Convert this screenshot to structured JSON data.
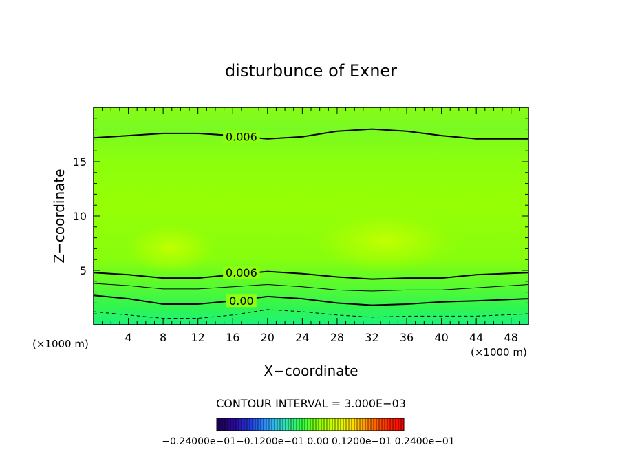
{
  "chart_data": {
    "type": "contour",
    "title": "disturbunce of Exner",
    "xlabel": "X−coordinate",
    "ylabel": "Z−coordinate",
    "x_unit_left": "(×1000 m)",
    "x_unit_right": "(×1000 m)",
    "xlim": [
      0,
      50
    ],
    "ylim": [
      0,
      20
    ],
    "x_ticks": [
      4,
      8,
      12,
      16,
      20,
      24,
      28,
      32,
      36,
      40,
      44,
      48
    ],
    "y_ticks": [
      5,
      10,
      15
    ],
    "contour_labels": [
      {
        "text": "0.006",
        "x": 17,
        "z": 17.3
      },
      {
        "text": "0.006",
        "x": 17,
        "z": 4.8
      },
      {
        "text": "0.00",
        "x": 17,
        "z": 2.2
      }
    ],
    "contour_lines": [
      {
        "level": 0.006,
        "style": "solid-bold",
        "points": [
          [
            0,
            17.2
          ],
          [
            4,
            17.4
          ],
          [
            8,
            17.6
          ],
          [
            12,
            17.6
          ],
          [
            16,
            17.4
          ],
          [
            20,
            17.1
          ],
          [
            24,
            17.3
          ],
          [
            28,
            17.8
          ],
          [
            32,
            18.0
          ],
          [
            36,
            17.8
          ],
          [
            40,
            17.4
          ],
          [
            44,
            17.1
          ],
          [
            50,
            17.1
          ]
        ]
      },
      {
        "level": 0.006,
        "style": "solid-bold",
        "points": [
          [
            0,
            4.8
          ],
          [
            4,
            4.6
          ],
          [
            8,
            4.3
          ],
          [
            12,
            4.3
          ],
          [
            16,
            4.6
          ],
          [
            20,
            4.9
          ],
          [
            24,
            4.7
          ],
          [
            28,
            4.4
          ],
          [
            32,
            4.2
          ],
          [
            36,
            4.3
          ],
          [
            40,
            4.3
          ],
          [
            44,
            4.6
          ],
          [
            50,
            4.8
          ]
        ]
      },
      {
        "level": 0.003,
        "style": "solid-thin",
        "points": [
          [
            0,
            3.8
          ],
          [
            4,
            3.6
          ],
          [
            8,
            3.3
          ],
          [
            12,
            3.3
          ],
          [
            16,
            3.5
          ],
          [
            20,
            3.7
          ],
          [
            24,
            3.5
          ],
          [
            28,
            3.2
          ],
          [
            32,
            3.1
          ],
          [
            36,
            3.2
          ],
          [
            40,
            3.2
          ],
          [
            44,
            3.4
          ],
          [
            50,
            3.7
          ]
        ]
      },
      {
        "level": 0.0,
        "style": "solid-bold",
        "points": [
          [
            0,
            2.7
          ],
          [
            4,
            2.4
          ],
          [
            8,
            1.9
          ],
          [
            12,
            1.9
          ],
          [
            16,
            2.2
          ],
          [
            20,
            2.6
          ],
          [
            24,
            2.4
          ],
          [
            28,
            2.0
          ],
          [
            32,
            1.8
          ],
          [
            36,
            1.9
          ],
          [
            40,
            2.1
          ],
          [
            44,
            2.2
          ],
          [
            50,
            2.4
          ]
        ]
      },
      {
        "level": -0.003,
        "style": "dashed",
        "points": [
          [
            0,
            1.2
          ],
          [
            4,
            0.9
          ],
          [
            8,
            0.6
          ],
          [
            12,
            0.6
          ],
          [
            16,
            0.9
          ],
          [
            20,
            1.4
          ],
          [
            24,
            1.2
          ],
          [
            28,
            0.9
          ],
          [
            32,
            0.7
          ],
          [
            36,
            0.8
          ],
          [
            40,
            0.8
          ],
          [
            44,
            0.8
          ],
          [
            50,
            1.0
          ]
        ]
      }
    ],
    "contour_interval_text": "CONTOUR INTERVAL = 3.000E−03",
    "colorbar": {
      "labels_text": "−0.24000e−01−0.1200e−01 0.00 0.1200e−01 0.2400e−01",
      "min": -0.024,
      "max": 0.024,
      "colors": [
        "#1a0050",
        "#2a0aa0",
        "#2040e0",
        "#2fa0ff",
        "#30e0b0",
        "#30ff40",
        "#8cff00",
        "#d0ff00",
        "#ffe000",
        "#ff8000",
        "#ff3000",
        "#ff0000"
      ]
    },
    "fill_colors": {
      "bottom": "#1ef27a",
      "mid_low": "#4cf83a",
      "mid": "#8cff10",
      "core": "#b4ff05",
      "top": "#78fa20"
    },
    "grid": false,
    "legend": "none"
  }
}
